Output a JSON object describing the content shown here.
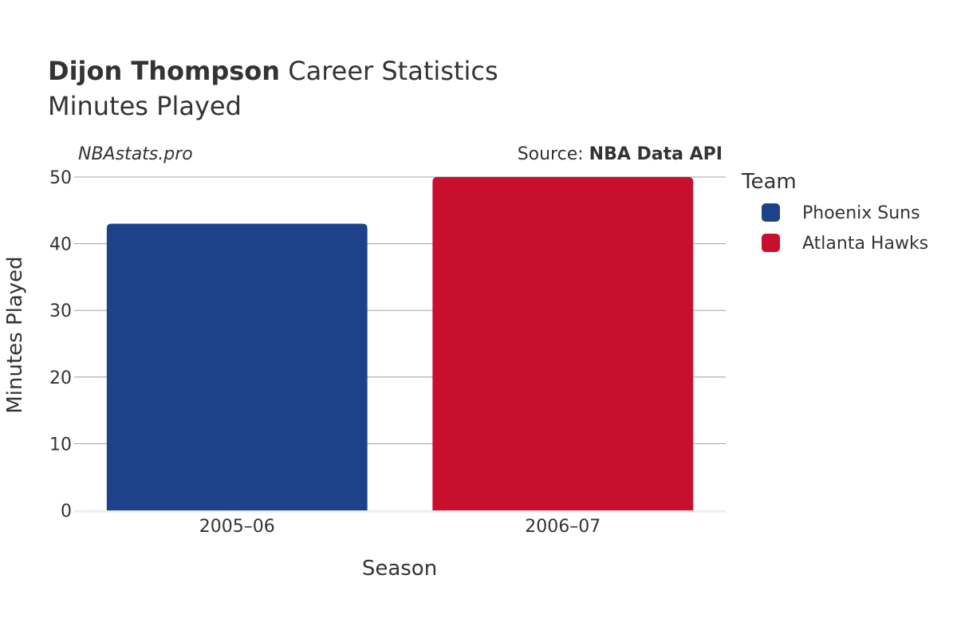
{
  "chart_data": {
    "type": "bar",
    "title_bold": "Dijon Thompson",
    "title_rest": " Career Statistics",
    "subtitle": "Minutes Played",
    "watermark": "NBAstats.pro",
    "source_prefix": "Source: ",
    "source_name": "NBA Data API",
    "xlabel": "Season",
    "ylabel": "Minutes Played",
    "ylim": [
      0,
      50
    ],
    "yticks": [
      0,
      10,
      20,
      30,
      40,
      50
    ],
    "categories": [
      "2005–06",
      "2006–07"
    ],
    "values": [
      43,
      50
    ],
    "bar_colors": [
      "#1d428a",
      "#c8102e"
    ],
    "grid": true,
    "legend": {
      "title": "Team",
      "placement": "right",
      "entries": [
        {
          "name": "Phoenix Suns",
          "color": "#1d428a"
        },
        {
          "name": "Atlanta Hawks",
          "color": "#c8102e"
        }
      ]
    }
  }
}
